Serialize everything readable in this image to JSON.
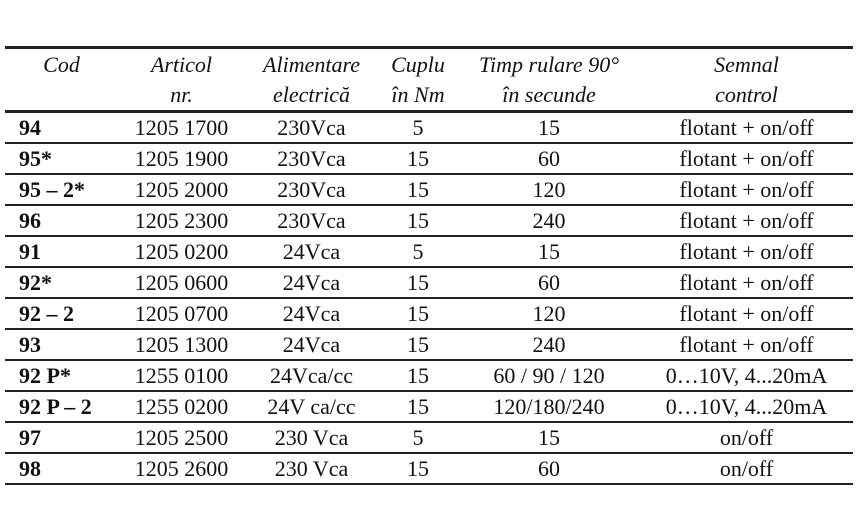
{
  "headers": [
    [
      "Cod",
      ""
    ],
    [
      "Articol",
      "nr."
    ],
    [
      "Alimentare",
      "electrică"
    ],
    [
      "Cuplu",
      "în Nm"
    ],
    [
      "Timp rulare 90°",
      "în secunde"
    ],
    [
      "Semnal",
      "control"
    ]
  ],
  "rows": [
    [
      "94",
      "1205 1700",
      "230Vca",
      "5",
      "15",
      "flotant + on/off"
    ],
    [
      "95*",
      "1205 1900",
      "230Vca",
      "15",
      "60",
      "flotant + on/off"
    ],
    [
      "95 – 2*",
      "1205 2000",
      "230Vca",
      "15",
      "120",
      "flotant + on/off"
    ],
    [
      "96",
      "1205 2300",
      "230Vca",
      "15",
      "240",
      "flotant + on/off"
    ],
    [
      "91",
      "1205 0200",
      "24Vca",
      "5",
      "15",
      "flotant + on/off"
    ],
    [
      "92*",
      "1205 0600",
      "24Vca",
      "15",
      "60",
      "flotant + on/off"
    ],
    [
      "92 – 2",
      "1205 0700",
      "24Vca",
      "15",
      "120",
      "flotant + on/off"
    ],
    [
      "93",
      "1205 1300",
      "24Vca",
      "15",
      "240",
      "flotant + on/off"
    ],
    [
      "92 P*",
      "1255 0100",
      "24Vca/cc",
      "15",
      "60 / 90 / 120",
      "0…10V, 4...20mA"
    ],
    [
      "92 P – 2",
      "1255 0200",
      "24V ca/cc",
      "15",
      "120/180/240",
      "0…10V, 4...20mA"
    ],
    [
      "97",
      "1205 2500",
      "230 Vca",
      "5",
      "15",
      "on/off"
    ],
    [
      "98",
      "1205 2600",
      "230 Vca",
      "15",
      "60",
      "on/off"
    ]
  ]
}
